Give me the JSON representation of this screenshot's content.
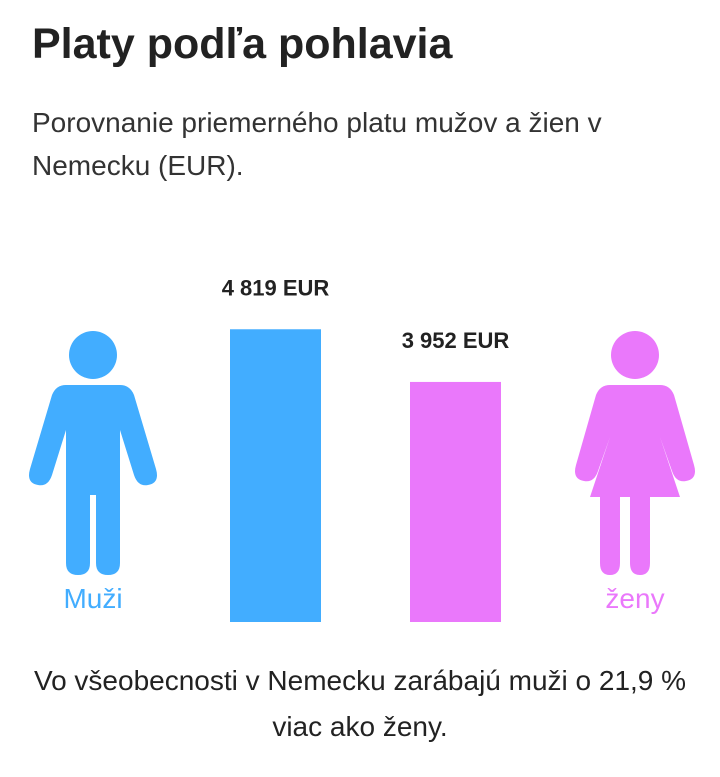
{
  "title": "Platy podľa pohlavia",
  "subtitle": "Porovnanie priemerného platu mužov a žien v Nemecku (EUR).",
  "footnote": "Vo všeobecnosti v Nemecku zarábajú muži o 21,9 % viac ako ženy.",
  "icons": {
    "male": "male-person-icon",
    "female": "female-person-icon"
  },
  "colors": {
    "male": "#42adff",
    "female": "#ea78fb"
  },
  "chart_data": {
    "type": "bar",
    "title": "Platy podľa pohlavia",
    "xlabel": "",
    "ylabel": "",
    "grid": false,
    "categories": [
      "Muži",
      "ženy"
    ],
    "values": [
      4819,
      3952
    ],
    "value_labels": [
      "4 819 EUR",
      "3 952 EUR"
    ],
    "ylim": [
      0,
      6700
    ]
  }
}
